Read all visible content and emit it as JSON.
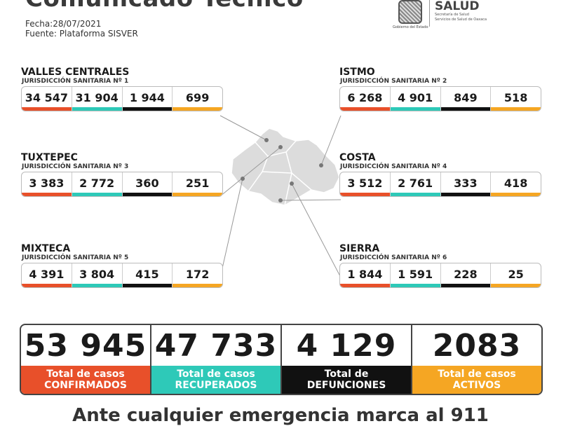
{
  "header": {
    "title": "Comunicado Técnico",
    "date": "Fecha:28/07/2021",
    "source": "Fuente: Plataforma SISVER",
    "gov_caption": "Gobierno del Estado",
    "brand": "SALUD",
    "brand_sub1": "Secretaría de Salud",
    "brand_sub2": "Servicios de Salud de Oaxaca"
  },
  "colors": {
    "confirmados": "#e8502a",
    "recuperados": "#2ec9b8",
    "defunciones": "#111111",
    "activos": "#f5a623"
  },
  "regions": [
    {
      "name": "VALLES CENTRALES",
      "sub": "JURISDICCIÓN SANITARIA Nº 1",
      "values": [
        "34 547",
        "31 904",
        "1 944",
        "699"
      ]
    },
    {
      "name": "ISTMO",
      "sub": "JURISDICCIÓN SANITARIA Nº 2",
      "values": [
        "6 268",
        "4 901",
        "849",
        "518"
      ]
    },
    {
      "name": "TUXTEPEC",
      "sub": "JURISDICCIÓN SANITARIA Nº 3",
      "values": [
        "3 383",
        "2 772",
        "360",
        "251"
      ]
    },
    {
      "name": "COSTA",
      "sub": "JURISDICCIÓN SANITARIA Nº 4",
      "values": [
        "3 512",
        "2 761",
        "333",
        "418"
      ]
    },
    {
      "name": "MIXTECA",
      "sub": "JURISDICCIÓN SANITARIA Nº 5",
      "values": [
        "4 391",
        "3 804",
        "415",
        "172"
      ]
    },
    {
      "name": "SIERRA",
      "sub": "JURISDICCIÓN SANITARIA Nº 6",
      "values": [
        "1 844",
        "1 591",
        "228",
        "25"
      ]
    }
  ],
  "totals": [
    {
      "value": "53 945",
      "line1": "Total de casos",
      "line2": "CONFIRMADOS"
    },
    {
      "value": "47 733",
      "line1": "Total de casos",
      "line2": "RECUPERADOS"
    },
    {
      "value": "4 129",
      "line1": "Total de",
      "line2": "DEFUNCIONES"
    },
    {
      "value": "2083",
      "line1": "Total de casos",
      "line2": "ACTIVOS"
    }
  ],
  "footer": "Ante cualquier emergencia marca al 911"
}
